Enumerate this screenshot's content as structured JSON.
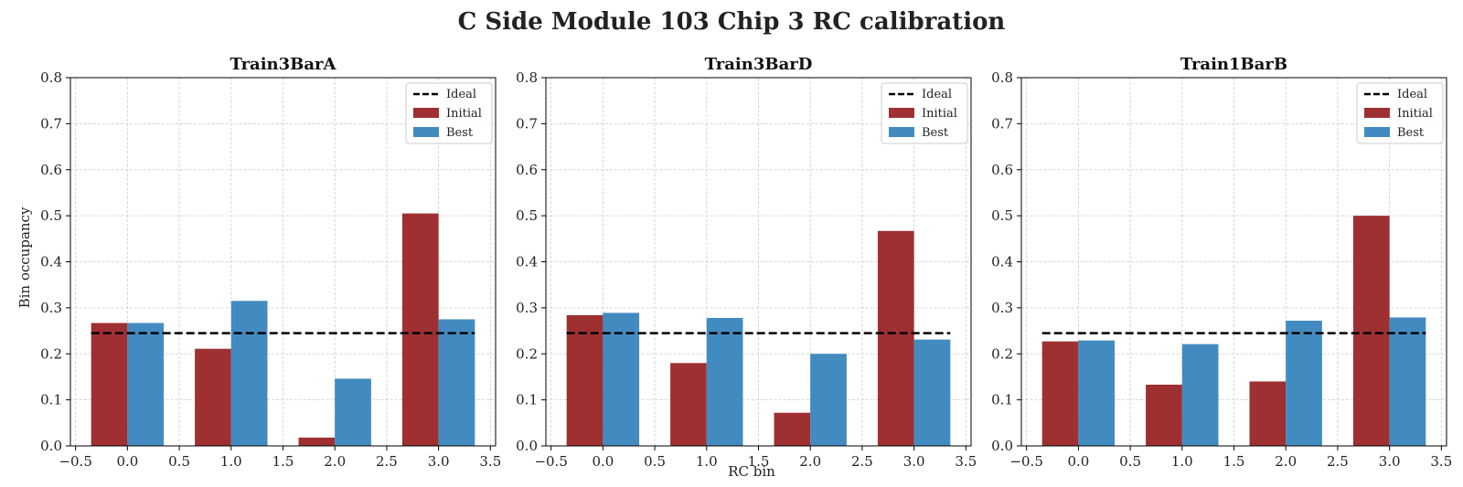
{
  "figure": {
    "title": "C Side Module 103 Chip 3 RC calibration",
    "xlabel": "RC bin",
    "ylabel": "Bin occupancy"
  },
  "colors": {
    "initial": "#9e3032",
    "best": "#428bc0",
    "ideal": "#000000",
    "grid": "#cccccc"
  },
  "legend": {
    "placement": "top-right",
    "items": [
      "Ideal",
      "Initial",
      "Best"
    ]
  },
  "chart_data": [
    {
      "type": "bar",
      "title": "Train3BarA",
      "x": [
        0,
        1,
        2,
        3
      ],
      "series": [
        {
          "name": "Initial",
          "values": [
            0.267,
            0.211,
            0.018,
            0.505
          ]
        },
        {
          "name": "Best",
          "values": [
            0.267,
            0.315,
            0.146,
            0.275
          ]
        }
      ],
      "ideal": 0.245,
      "xlim": [
        -0.55,
        3.55
      ],
      "ylim": [
        0,
        0.8
      ],
      "xticks": [
        "−0.5",
        "0.0",
        "0.5",
        "1.0",
        "1.5",
        "2.0",
        "2.5",
        "3.0",
        "3.5"
      ],
      "yticks": [
        "0.0",
        "0.1",
        "0.2",
        "0.3",
        "0.4",
        "0.5",
        "0.6",
        "0.7",
        "0.8"
      ],
      "grid": true
    },
    {
      "type": "bar",
      "title": "Train3BarD",
      "x": [
        0,
        1,
        2,
        3
      ],
      "series": [
        {
          "name": "Initial",
          "values": [
            0.284,
            0.18,
            0.072,
            0.467
          ]
        },
        {
          "name": "Best",
          "values": [
            0.289,
            0.278,
            0.2,
            0.231
          ]
        }
      ],
      "ideal": 0.245,
      "xlim": [
        -0.55,
        3.55
      ],
      "ylim": [
        0,
        0.8
      ],
      "xticks": [
        "−0.5",
        "0.0",
        "0.5",
        "1.0",
        "1.5",
        "2.0",
        "2.5",
        "3.0",
        "3.5"
      ],
      "yticks": [
        "0.0",
        "0.1",
        "0.2",
        "0.3",
        "0.4",
        "0.5",
        "0.6",
        "0.7",
        "0.8"
      ],
      "grid": true
    },
    {
      "type": "bar",
      "title": "Train1BarB",
      "x": [
        0,
        1,
        2,
        3
      ],
      "series": [
        {
          "name": "Initial",
          "values": [
            0.227,
            0.133,
            0.14,
            0.5
          ]
        },
        {
          "name": "Best",
          "values": [
            0.229,
            0.221,
            0.272,
            0.279
          ]
        }
      ],
      "ideal": 0.245,
      "xlim": [
        -0.55,
        3.55
      ],
      "ylim": [
        0,
        0.8
      ],
      "xticks": [
        "−0.5",
        "0.0",
        "0.5",
        "1.0",
        "1.5",
        "2.0",
        "2.5",
        "3.0",
        "3.5"
      ],
      "yticks": [
        "0.0",
        "0.1",
        "0.2",
        "0.3",
        "0.4",
        "0.5",
        "0.6",
        "0.7",
        "0.8"
      ],
      "grid": true
    }
  ]
}
